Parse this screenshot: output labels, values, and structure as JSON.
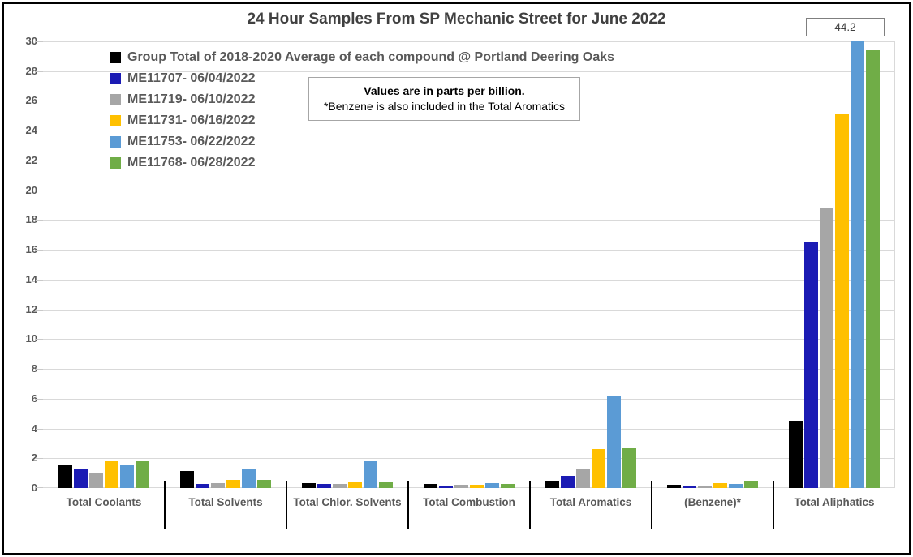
{
  "note": {
    "line1": "Values are in parts per billion.",
    "line2": "*Benzene is also included in the Total Aromatics"
  },
  "annotation": {
    "label": "44.2"
  },
  "colors": {
    "grid": "#D9D9D9",
    "axis_text": "#595959",
    "title_text": "#404040",
    "separator": "#000000"
  },
  "chart_data": {
    "type": "bar",
    "title": "24 Hour Samples From SP Mechanic Street for June 2022",
    "units": "parts per billion",
    "categories": [
      "Total Coolants",
      "Total Solvents",
      "Total Chlor. Solvents",
      "Total Combustion",
      "Total Aromatics",
      "(Benzene)*",
      "Total Aliphatics"
    ],
    "series": [
      {
        "name": "Group Total of 2018-2020 Average of each compound @ Portland Deering Oaks",
        "color": "#000000",
        "values": [
          1.5,
          1.15,
          0.35,
          0.25,
          0.5,
          0.2,
          4.5
        ]
      },
      {
        "name": "ME11707- 06/04/2022",
        "color": "#1B1BB4",
        "values": [
          1.3,
          0.25,
          0.3,
          0.1,
          0.8,
          0.15,
          16.5
        ]
      },
      {
        "name": "ME11719- 06/10/2022",
        "color": "#A6A6A6",
        "values": [
          1.05,
          0.35,
          0.3,
          0.2,
          1.3,
          0.1,
          18.8
        ]
      },
      {
        "name": "ME11731- 06/16/2022",
        "color": "#FFC000",
        "values": [
          1.8,
          0.55,
          0.45,
          0.2,
          2.6,
          0.35,
          25.1
        ]
      },
      {
        "name": "ME11753- 06/22/2022",
        "color": "#5B9BD5",
        "values": [
          1.5,
          1.3,
          1.8,
          0.35,
          6.15,
          0.25,
          44.2
        ]
      },
      {
        "name": "ME11768- 06/28/2022",
        "color": "#70AD47",
        "values": [
          1.85,
          0.55,
          0.45,
          0.25,
          2.75,
          0.5,
          29.4
        ]
      }
    ],
    "ylim": [
      0,
      30
    ],
    "ytick_step": 2,
    "grid": true,
    "legend_position": "top-left-inside",
    "annotations": [
      {
        "text": "44.2",
        "category": "Total Aliphatics",
        "series": "ME11753- 06/22/2022",
        "note": "bar exceeds y-axis max 30 and is clipped; value shown in boxed label"
      }
    ]
  }
}
